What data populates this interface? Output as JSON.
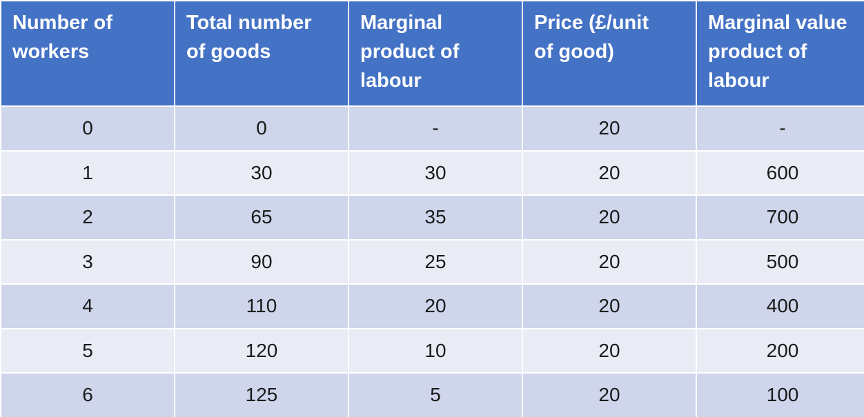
{
  "table": {
    "headers": [
      "Number of\nworkers",
      "Total number\nof goods",
      "Marginal\nproduct of\nlabour",
      "Price (£/unit\nof good)",
      "Marginal value\nproduct of\nlabour"
    ],
    "rows": [
      [
        "0",
        "0",
        "-",
        "20",
        "-"
      ],
      [
        "1",
        "30",
        "30",
        "20",
        "600"
      ],
      [
        "2",
        "65",
        "35",
        "20",
        "700"
      ],
      [
        "3",
        "90",
        "25",
        "20",
        "500"
      ],
      [
        "4",
        "110",
        "20",
        "20",
        "400"
      ],
      [
        "5",
        "120",
        "10",
        "20",
        "200"
      ],
      [
        "6",
        "125",
        "5",
        "20",
        "100"
      ]
    ]
  },
  "colors": {
    "header_bg": "#4472c4",
    "row_band_dark": "#cfd5ea",
    "row_band_light": "#e9ebf5"
  }
}
